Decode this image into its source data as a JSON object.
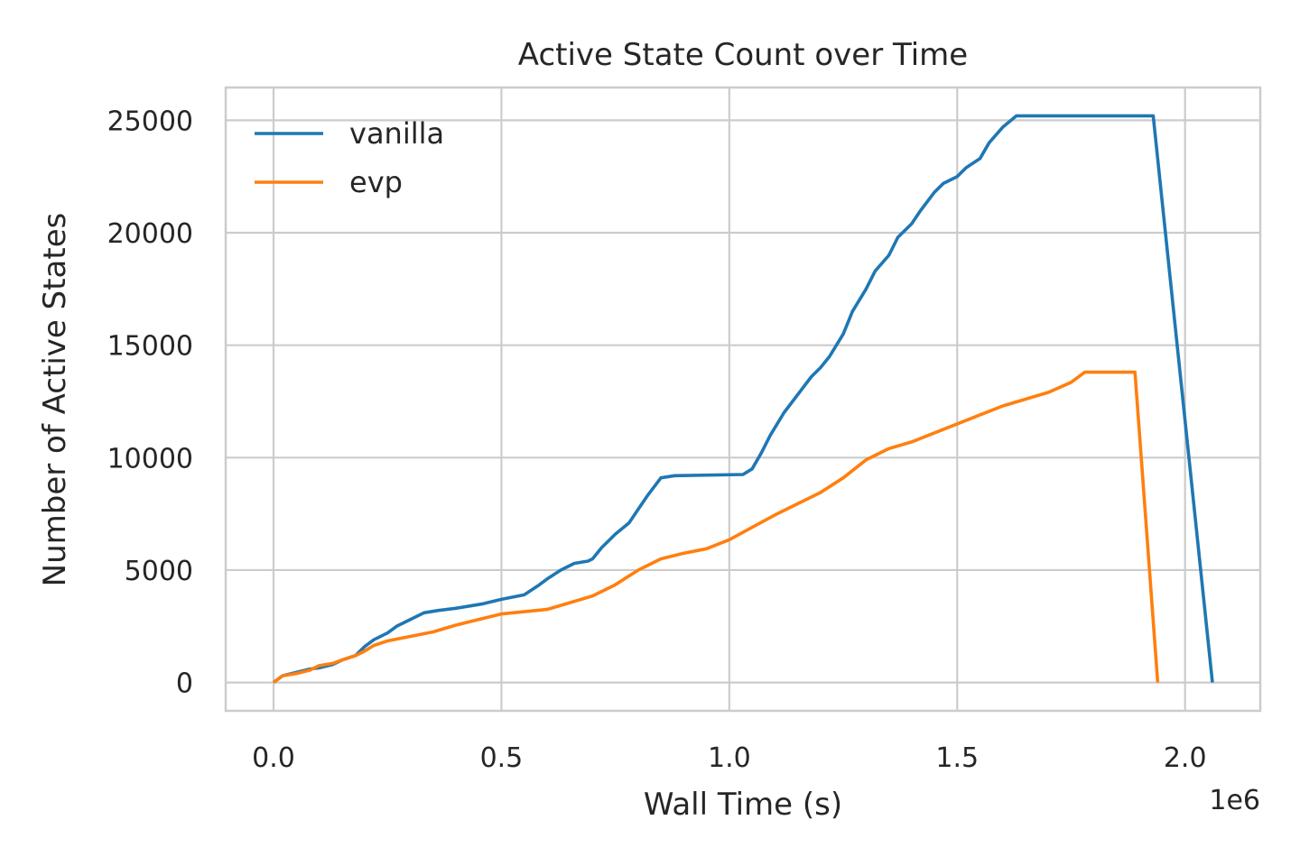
{
  "chart_data": {
    "type": "line",
    "title": "Active State Count over Time",
    "xlabel": "Wall Time (s)",
    "ylabel": "Number of Active States",
    "x_offset_label": "1e6",
    "xlim": [
      -0.105,
      2.165
    ],
    "ylim": [
      -1260,
      26460
    ],
    "x_ticks": [
      0.0,
      0.5,
      1.0,
      1.5,
      2.0
    ],
    "x_tick_labels": [
      "0.0",
      "0.5",
      "1.0",
      "1.5",
      "2.0"
    ],
    "y_ticks": [
      0,
      5000,
      10000,
      15000,
      20000,
      25000
    ],
    "y_tick_labels": [
      "0",
      "5000",
      "10000",
      "15000",
      "20000",
      "25000"
    ],
    "grid": true,
    "legend_position": "upper-left",
    "series": [
      {
        "name": "vanilla",
        "color": "#1f77b4",
        "x": [
          0.0,
          0.02,
          0.05,
          0.08,
          0.1,
          0.13,
          0.15,
          0.18,
          0.2,
          0.22,
          0.25,
          0.27,
          0.3,
          0.33,
          0.36,
          0.4,
          0.43,
          0.46,
          0.5,
          0.55,
          0.58,
          0.6,
          0.63,
          0.66,
          0.69,
          0.7,
          0.72,
          0.75,
          0.78,
          0.8,
          0.82,
          0.85,
          0.88,
          1.03,
          1.05,
          1.07,
          1.09,
          1.12,
          1.15,
          1.18,
          1.2,
          1.22,
          1.25,
          1.27,
          1.3,
          1.32,
          1.35,
          1.37,
          1.4,
          1.42,
          1.45,
          1.47,
          1.5,
          1.52,
          1.55,
          1.57,
          1.6,
          1.63,
          1.93,
          2.06
        ],
        "y": [
          0,
          300,
          450,
          600,
          650,
          800,
          1000,
          1200,
          1600,
          1900,
          2200,
          2500,
          2800,
          3100,
          3200,
          3300,
          3400,
          3500,
          3700,
          3900,
          4300,
          4600,
          5000,
          5300,
          5400,
          5500,
          6000,
          6600,
          7100,
          7700,
          8300,
          9100,
          9200,
          9250,
          9500,
          10200,
          11000,
          12000,
          12800,
          13600,
          14000,
          14500,
          15500,
          16500,
          17500,
          18300,
          19000,
          19800,
          20400,
          21000,
          21800,
          22200,
          22500,
          22900,
          23300,
          24000,
          24700,
          25200,
          25200,
          0
        ]
      },
      {
        "name": "evp",
        "color": "#ff7f0e",
        "x": [
          0.0,
          0.02,
          0.05,
          0.08,
          0.1,
          0.13,
          0.15,
          0.18,
          0.2,
          0.22,
          0.25,
          0.3,
          0.35,
          0.4,
          0.45,
          0.5,
          0.55,
          0.6,
          0.65,
          0.7,
          0.75,
          0.8,
          0.85,
          0.9,
          0.95,
          1.0,
          1.05,
          1.1,
          1.15,
          1.2,
          1.25,
          1.3,
          1.35,
          1.4,
          1.45,
          1.5,
          1.55,
          1.6,
          1.65,
          1.7,
          1.75,
          1.78,
          1.89,
          1.94
        ],
        "y": [
          0,
          300,
          400,
          550,
          750,
          850,
          1000,
          1200,
          1400,
          1650,
          1850,
          2050,
          2250,
          2550,
          2800,
          3050,
          3150,
          3250,
          3550,
          3850,
          4350,
          5000,
          5500,
          5750,
          5950,
          6350,
          6900,
          7450,
          7950,
          8450,
          9100,
          9900,
          10400,
          10700,
          11100,
          11500,
          11900,
          12300,
          12600,
          12900,
          13350,
          13800,
          13800,
          0
        ]
      }
    ]
  }
}
